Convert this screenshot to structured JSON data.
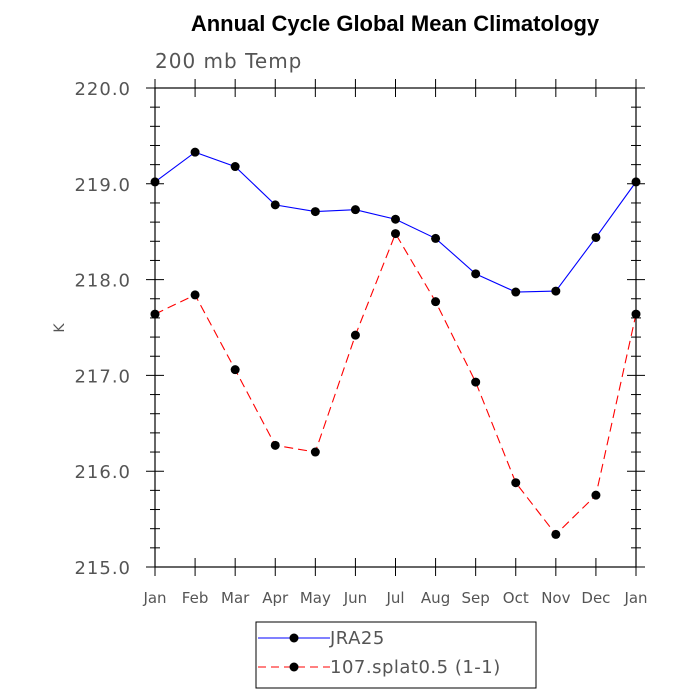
{
  "chart_data": {
    "type": "line",
    "title": "Annual Cycle Global Mean Climatology",
    "subtitle": "200 mb Temp",
    "ylabel": "K",
    "xlabel": "",
    "categories": [
      "Jan",
      "Feb",
      "Mar",
      "Apr",
      "May",
      "Jun",
      "Jul",
      "Aug",
      "Sep",
      "Oct",
      "Nov",
      "Dec",
      "Jan"
    ],
    "ylim": [
      215.0,
      220.0
    ],
    "yticks": [
      "215.0",
      "216.0",
      "217.0",
      "218.0",
      "219.0",
      "220.0"
    ],
    "grid": false,
    "legend_position": "bottom",
    "series": [
      {
        "name": "JRA25",
        "color": "#0000ff",
        "dash": "solid",
        "values": [
          219.02,
          219.33,
          219.18,
          218.78,
          218.71,
          218.73,
          218.63,
          218.43,
          218.06,
          217.87,
          217.88,
          218.44,
          219.02
        ]
      },
      {
        "name": "107.splat0.5 (1-1)",
        "color": "#ff0000",
        "dash": "dashed",
        "values": [
          217.64,
          217.84,
          217.06,
          216.27,
          216.2,
          217.42,
          218.48,
          217.77,
          216.93,
          215.88,
          215.34,
          215.75,
          217.64
        ]
      }
    ]
  }
}
